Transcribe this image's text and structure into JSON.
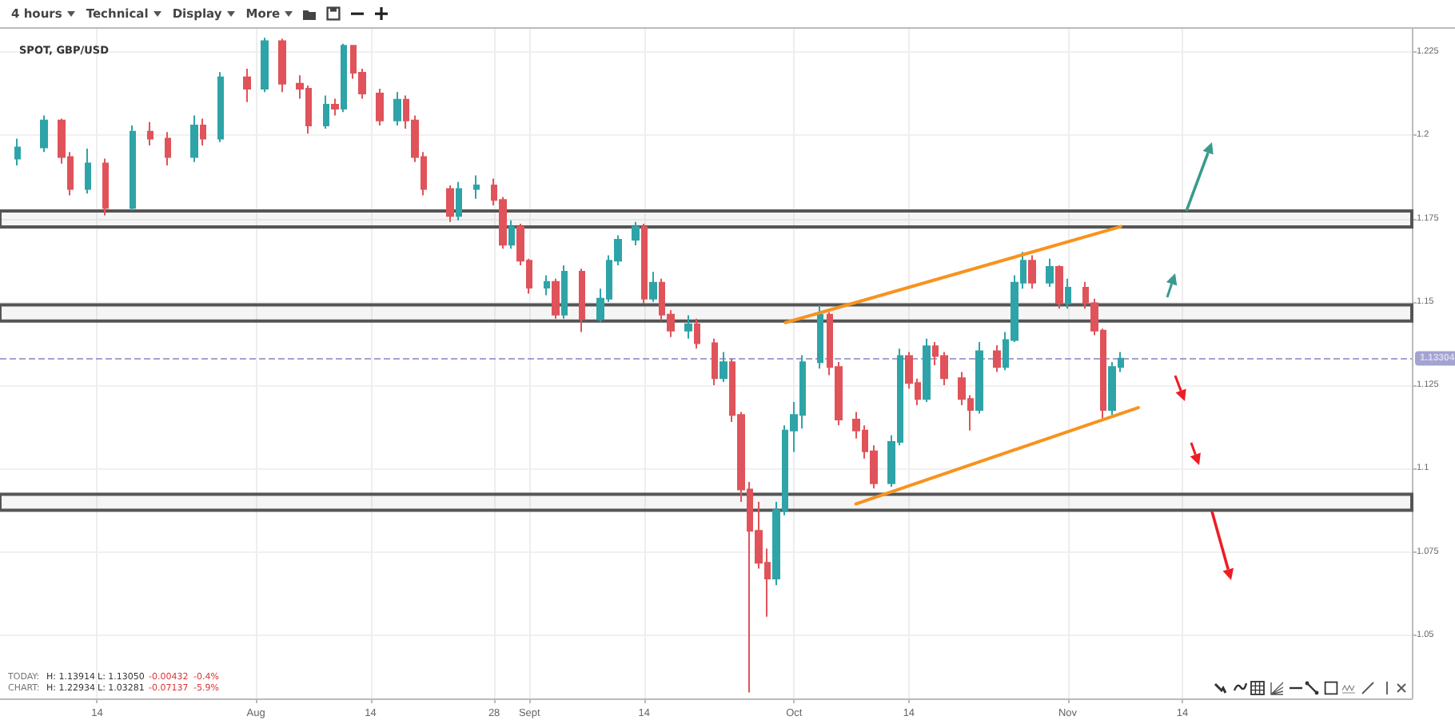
{
  "chart_data": {
    "type": "candlestick",
    "title": "SPOT, GBP/USD",
    "x": [
      "--07-05",
      "--07-08",
      "--07-10",
      "--07-11",
      "--07-13",
      "--07-15",
      "--07-18",
      "--07-20",
      "--07-22",
      "--07-25",
      "--07-26",
      "--07-28",
      "--07-31",
      "--08-02",
      "--08-04",
      "--08-06",
      "--08-07",
      "--08-09",
      "--08-10",
      "--08-11",
      "--08-12",
      "--08-13",
      "--08-15",
      "--08-17",
      "--08-18",
      "--08-19",
      "--08-20",
      "--08-23",
      "--08-24",
      "--08-26",
      "--08-28",
      "--08-29",
      "--08-30",
      "--08-31",
      "--09-01",
      "--09-03",
      "--09-04",
      "--09-05",
      "--09-07",
      "--09-09",
      "--09-10",
      "--09-11",
      "--09-13",
      "--09-14",
      "--09-15",
      "--09-16",
      "--09-17",
      "--09-19",
      "--09-20",
      "--09-22",
      "--09-23",
      "--09-24",
      "--09-25",
      "--09-26",
      "--09-27",
      "--09-28",
      "--09-29",
      "--09-30",
      "--10-01",
      "--10-02",
      "--10-04",
      "--10-05",
      "--10-06",
      "--10-08",
      "--10-09",
      "--10-10",
      "--10-12",
      "--10-13",
      "--10-14",
      "--10-15",
      "--10-16",
      "--10-17",
      "--10-18",
      "--10-20",
      "--10-21",
      "--10-22",
      "--10-24",
      "--10-25",
      "--10-26",
      "--10-27",
      "--10-28",
      "--10-30",
      "--10-31",
      "--11-01",
      "--11-03",
      "--11-04",
      "--11-05",
      "--11-06",
      "--11-07"
    ],
    "ohlc": [
      [
        1.193,
        1.199,
        1.191,
        1.1964
      ],
      [
        1.1964,
        1.206,
        1.195,
        1.2045
      ],
      [
        1.2045,
        1.205,
        1.1915,
        1.1935
      ],
      [
        1.1935,
        1.195,
        1.182,
        1.1839
      ],
      [
        1.1839,
        1.196,
        1.1825,
        1.1916
      ],
      [
        1.1916,
        1.193,
        1.176,
        1.1782
      ],
      [
        1.1782,
        1.203,
        1.1775,
        1.2011
      ],
      [
        1.2011,
        1.204,
        1.197,
        1.199
      ],
      [
        1.199,
        1.201,
        1.191,
        1.1935
      ],
      [
        1.1935,
        1.206,
        1.192,
        1.203
      ],
      [
        1.203,
        1.205,
        1.197,
        1.199
      ],
      [
        1.199,
        1.219,
        1.198,
        1.2174
      ],
      [
        1.2174,
        1.22,
        1.21,
        1.214
      ],
      [
        1.214,
        1.2293,
        1.213,
        1.2283
      ],
      [
        1.2283,
        1.229,
        1.213,
        1.2155
      ],
      [
        1.2155,
        1.218,
        1.211,
        1.214
      ],
      [
        1.214,
        1.215,
        1.2005,
        1.203
      ],
      [
        1.203,
        1.212,
        1.202,
        1.2092
      ],
      [
        1.2092,
        1.211,
        1.206,
        1.208
      ],
      [
        1.208,
        1.2275,
        1.207,
        1.2269
      ],
      [
        1.2269,
        1.227,
        1.217,
        1.2188
      ],
      [
        1.2188,
        1.22,
        1.211,
        1.2126
      ],
      [
        1.2126,
        1.214,
        1.203,
        1.2045
      ],
      [
        1.2045,
        1.213,
        1.203,
        1.2107
      ],
      [
        1.2107,
        1.212,
        1.202,
        1.2045
      ],
      [
        1.2045,
        1.206,
        1.192,
        1.1935
      ],
      [
        1.1935,
        1.195,
        1.182,
        1.1839
      ],
      [
        1.1839,
        1.185,
        1.174,
        1.1758
      ],
      [
        1.1758,
        1.186,
        1.1745,
        1.1839
      ],
      [
        1.1839,
        1.188,
        1.181,
        1.185
      ],
      [
        1.185,
        1.187,
        1.179,
        1.1806
      ],
      [
        1.1806,
        1.1815,
        1.166,
        1.1672
      ],
      [
        1.1672,
        1.1745,
        1.166,
        1.1725
      ],
      [
        1.1725,
        1.1735,
        1.161,
        1.1624
      ],
      [
        1.1624,
        1.163,
        1.1525,
        1.1543
      ],
      [
        1.1543,
        1.158,
        1.152,
        1.156
      ],
      [
        1.156,
        1.157,
        1.145,
        1.1462
      ],
      [
        1.1462,
        1.161,
        1.145,
        1.1591
      ],
      [
        1.1591,
        1.16,
        1.141,
        1.1448
      ],
      [
        1.1448,
        1.154,
        1.144,
        1.151
      ],
      [
        1.151,
        1.164,
        1.15,
        1.1624
      ],
      [
        1.1624,
        1.17,
        1.161,
        1.1687
      ],
      [
        1.1687,
        1.174,
        1.167,
        1.1725
      ],
      [
        1.1725,
        1.1735,
        1.1495,
        1.151
      ],
      [
        1.151,
        1.159,
        1.15,
        1.1558
      ],
      [
        1.1558,
        1.157,
        1.1445,
        1.1462
      ],
      [
        1.1462,
        1.1475,
        1.1395,
        1.1414
      ],
      [
        1.1414,
        1.146,
        1.139,
        1.1433
      ],
      [
        1.1433,
        1.145,
        1.136,
        1.1376
      ],
      [
        1.1376,
        1.139,
        1.125,
        1.1271
      ],
      [
        1.1271,
        1.135,
        1.126,
        1.1319
      ],
      [
        1.1319,
        1.133,
        1.114,
        1.1161
      ],
      [
        1.1161,
        1.117,
        1.09,
        1.0937
      ],
      [
        1.0937,
        1.096,
        1.0328,
        1.0813
      ],
      [
        1.0813,
        1.09,
        1.07,
        1.0717
      ],
      [
        1.0717,
        1.076,
        1.0555,
        1.067
      ],
      [
        1.067,
        1.09,
        1.065,
        1.0875
      ],
      [
        1.0875,
        1.113,
        1.086,
        1.1114
      ],
      [
        1.1114,
        1.12,
        1.105,
        1.1161
      ],
      [
        1.1161,
        1.134,
        1.112,
        1.1319
      ],
      [
        1.1319,
        1.149,
        1.13,
        1.1462
      ],
      [
        1.1462,
        1.147,
        1.128,
        1.1305
      ],
      [
        1.1305,
        1.132,
        1.113,
        1.1147
      ],
      [
        1.1147,
        1.117,
        1.109,
        1.1114
      ],
      [
        1.1114,
        1.113,
        1.103,
        1.1052
      ],
      [
        1.1052,
        1.107,
        1.094,
        1.0956
      ],
      [
        1.0956,
        1.11,
        1.0945,
        1.108
      ],
      [
        1.108,
        1.136,
        1.107,
        1.1338
      ],
      [
        1.1338,
        1.135,
        1.124,
        1.1257
      ],
      [
        1.1257,
        1.127,
        1.119,
        1.1209
      ],
      [
        1.1209,
        1.139,
        1.12,
        1.1367
      ],
      [
        1.1367,
        1.138,
        1.131,
        1.1338
      ],
      [
        1.1338,
        1.135,
        1.125,
        1.1271
      ],
      [
        1.1271,
        1.129,
        1.119,
        1.1209
      ],
      [
        1.1209,
        1.122,
        1.1114,
        1.1176
      ],
      [
        1.1176,
        1.138,
        1.1165,
        1.1352
      ],
      [
        1.1352,
        1.137,
        1.129,
        1.1305
      ],
      [
        1.1305,
        1.141,
        1.1295,
        1.1386
      ],
      [
        1.1386,
        1.158,
        1.138,
        1.1558
      ],
      [
        1.1558,
        1.165,
        1.154,
        1.1624
      ],
      [
        1.1624,
        1.164,
        1.154,
        1.1558
      ],
      [
        1.1558,
        1.163,
        1.1545,
        1.1605
      ],
      [
        1.1605,
        1.161,
        1.148,
        1.1496
      ],
      [
        1.1496,
        1.157,
        1.148,
        1.1543
      ],
      [
        1.1543,
        1.156,
        1.148,
        1.1496
      ],
      [
        1.1496,
        1.151,
        1.14,
        1.1414
      ],
      [
        1.1414,
        1.142,
        1.115,
        1.1176
      ],
      [
        1.1176,
        1.132,
        1.116,
        1.1305
      ],
      [
        1.1305,
        1.135,
        1.129,
        1.133
      ]
    ],
    "colors": [
      "#2ea4a8",
      "#2ea4a8",
      "#e0535a",
      "#e0535a",
      "#2ea4a8",
      "#e0535a",
      "#2ea4a8",
      "#e0535a",
      "#e0535a",
      "#2ea4a8",
      "#e0535a",
      "#2ea4a8",
      "#e0535a",
      "#2ea4a8",
      "#e0535a",
      "#e0535a",
      "#e0535a",
      "#2ea4a8",
      "#e0535a",
      "#2ea4a8",
      "#e0535a",
      "#e0535a",
      "#e0535a",
      "#2ea4a8",
      "#e0535a",
      "#e0535a",
      "#e0535a",
      "#e0535a",
      "#2ea4a8",
      "#2ea4a8",
      "#e0535a",
      "#e0535a",
      "#2ea4a8",
      "#e0535a",
      "#e0535a",
      "#2ea4a8",
      "#e0535a",
      "#2ea4a8",
      "#e0535a",
      "#2ea4a8",
      "#2ea4a8",
      "#2ea4a8",
      "#2ea4a8",
      "#e0535a",
      "#2ea4a8",
      "#e0535a",
      "#e0535a",
      "#2ea4a8",
      "#e0535a",
      "#e0535a",
      "#2ea4a8",
      "#e0535a",
      "#e0535a",
      "#e0535a",
      "#e0535a",
      "#e0535a",
      "#2ea4a8",
      "#2ea4a8",
      "#2ea4a8",
      "#2ea4a8",
      "#2ea4a8",
      "#e0535a",
      "#e0535a",
      "#e0535a",
      "#e0535a",
      "#e0535a",
      "#2ea4a8",
      "#2ea4a8",
      "#e0535a",
      "#e0535a",
      "#2ea4a8",
      "#e0535a",
      "#e0535a",
      "#e0535a",
      "#e0535a",
      "#2ea4a8",
      "#e0535a",
      "#2ea4a8",
      "#2ea4a8",
      "#2ea4a8",
      "#e0535a",
      "#2ea4a8",
      "#e0535a",
      "#2ea4a8",
      "#e0535a",
      "#e0535a",
      "#e0535a",
      "#2ea4a8",
      "#2ea4a8"
    ],
    "series": [
      {
        "type": "line",
        "color": "#f7931e",
        "x": [
          "--09-30",
          "--11-07"
        ],
        "values": [
          1.1438,
          1.1726
        ]
      },
      {
        "type": "line",
        "color": "#f7931e",
        "x": [
          "--10-08",
          "--11-09"
        ],
        "values": [
          1.0894,
          1.1183
        ]
      }
    ],
    "bands": [
      {
        "axis": "y",
        "from": 1.1725,
        "to": 1.1773,
        "color": "#555555"
      },
      {
        "axis": "y",
        "from": 1.1443,
        "to": 1.1491,
        "color": "#555555"
      },
      {
        "axis": "y",
        "from": 1.0875,
        "to": 1.0923,
        "color": "#555555"
      }
    ],
    "ref_lines": [
      {
        "axis": "y",
        "value": 1.13304,
        "label": "1.13304",
        "color": "#6466b4",
        "line_style": "dashed"
      }
    ],
    "xlim": [
      "--07-03",
      "--12-10"
    ],
    "xticks": [
      {
        "value": "--07-14",
        "label": "14"
      },
      {
        "value": "--08-01",
        "label": "Aug"
      },
      {
        "value": "--08-14",
        "label": "14"
      },
      {
        "value": "--08-28",
        "label": "28"
      },
      {
        "value": "--09-01",
        "label": "Sept"
      },
      {
        "value": "--09-14",
        "label": "14"
      },
      {
        "value": "--10-01",
        "label": "Oct"
      },
      {
        "value": "--10-14",
        "label": "14"
      },
      {
        "value": "--11-01",
        "label": "Nov"
      },
      {
        "value": "--11-14",
        "label": "14"
      }
    ],
    "ylim": [
      1.031,
      1.232
    ],
    "yticks": [
      1.05,
      1.075,
      1.1,
      1.125,
      1.15,
      1.175,
      1.2,
      1.225
    ],
    "grid": true,
    "annotations": [
      "4 hours",
      "Technical",
      "Display",
      "More",
      "TODAY:",
      "H: 1.13914",
      "L: 1.13050",
      "-0.00432",
      "-0.4%",
      "CHART:",
      "H: 1.22934",
      "L: 1.03281",
      "-0.07137",
      "-5.9%"
    ]
  }
}
